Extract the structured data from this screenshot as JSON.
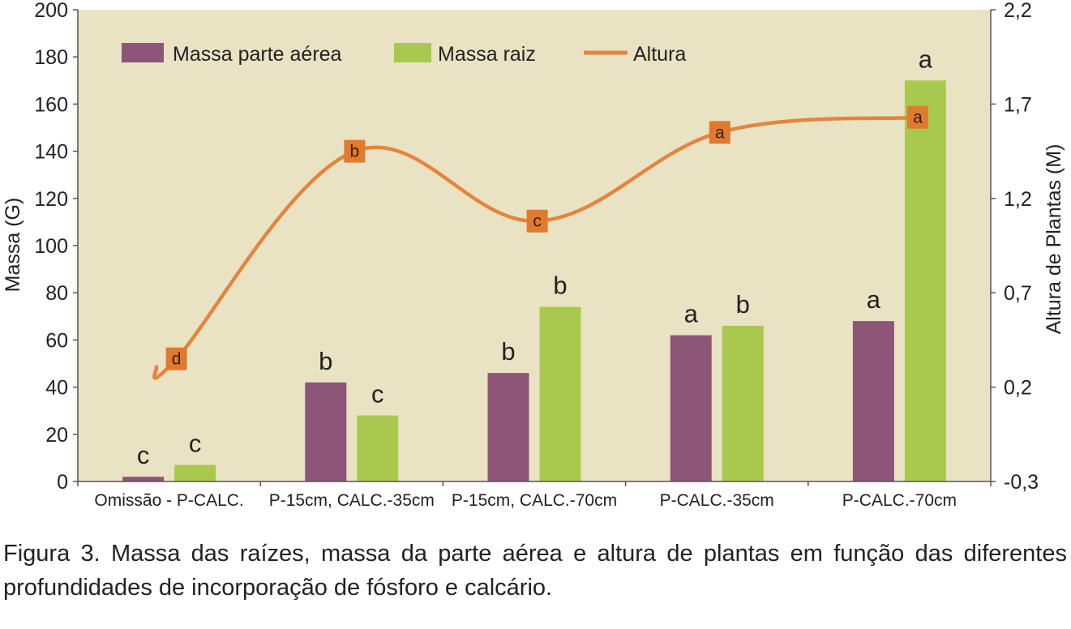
{
  "chart_data": {
    "type": "bar",
    "categories": [
      "Omissão - P-CALC.",
      "P-15cm, CALC.-35cm",
      "P-15cm, CALC.-70cm",
      "P-CALC.-35cm",
      "P-CALC.-70cm"
    ],
    "series": [
      {
        "name": "Massa parte aérea",
        "type": "bar",
        "color": "#8d5577",
        "values": [
          2,
          42,
          46,
          62,
          68
        ],
        "labels": [
          "c",
          "b",
          "b",
          "a",
          "a"
        ]
      },
      {
        "name": "Massa raiz",
        "type": "bar",
        "color": "#a8c94d",
        "values": [
          7,
          28,
          74,
          66,
          170
        ],
        "labels": [
          "c",
          "c",
          "b",
          "b",
          "a"
        ]
      },
      {
        "name": "Altura",
        "type": "line",
        "axis": "right",
        "color": "#e3853f",
        "values": [
          0.35,
          1.45,
          1.08,
          1.55,
          1.63
        ],
        "labels": [
          "d",
          "b",
          "c",
          "a",
          "a"
        ]
      }
    ],
    "ylabel": "Massa (G)",
    "y2label": "Altura de Plantas (M)",
    "ylim": [
      0,
      200
    ],
    "yticks": [
      "0",
      "20",
      "40",
      "60",
      "80",
      "100",
      "120",
      "140",
      "160",
      "180",
      "200"
    ],
    "y2lim": [
      -0.3,
      2.2
    ],
    "y2ticks": [
      "-0,3",
      "0,2",
      "0,7",
      "1,2",
      "1,7",
      "2,2"
    ],
    "legend": "top-left",
    "grid": false,
    "plot_background": "#e9e3c3"
  },
  "caption": "Figura 3. Massa das raízes, massa da parte aérea e altura de plantas em função das diferentes profundidades de incorporação de fósforo e calcário."
}
